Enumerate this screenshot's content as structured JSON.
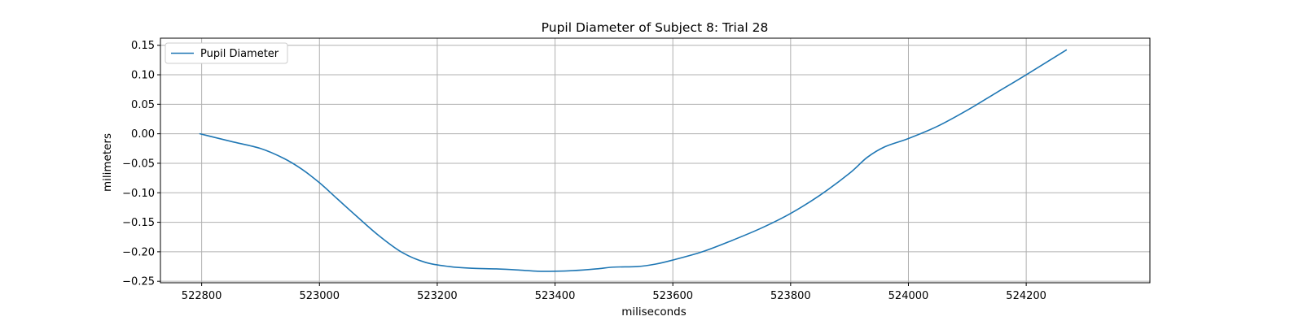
{
  "chart_data": {
    "type": "line",
    "title": "Pupil Diameter of Subject 8: Trial 28",
    "xlabel": "miliseconds",
    "ylabel": "milimeters",
    "xlim": [
      522730,
      524410
    ],
    "ylim": [
      -0.2525,
      0.162
    ],
    "xticks": [
      522800,
      523000,
      523200,
      523400,
      523600,
      523800,
      524000,
      524200
    ],
    "xtick_labels": [
      "522800",
      "523000",
      "523200",
      "523400",
      "523600",
      "523800",
      "524000",
      "524200"
    ],
    "yticks": [
      0.15,
      0.1,
      0.05,
      0.0,
      -0.05,
      -0.1,
      -0.15,
      -0.2,
      -0.25
    ],
    "ytick_labels": [
      "0.15",
      "0.10",
      "0.05",
      "0.00",
      "−0.05",
      "−0.10",
      "−0.15",
      "−0.20",
      "−0.25"
    ],
    "grid": true,
    "legend_position": "top-left",
    "series": [
      {
        "name": "Pupil Diameter",
        "color": "#1f77b4",
        "x": [
          522797,
          522850,
          522900,
          522940,
          522970,
          523000,
          523030,
          523060,
          523100,
          523140,
          523180,
          523220,
          523260,
          523300,
          523340,
          523370,
          523400,
          523430,
          523470,
          523500,
          523540,
          523570,
          523600,
          523650,
          523700,
          523750,
          523800,
          523850,
          523900,
          523930,
          523960,
          524000,
          524050,
          524100,
          524150,
          524200,
          524268
        ],
        "y": [
          0.0,
          -0.013,
          -0.025,
          -0.042,
          -0.06,
          -0.083,
          -0.11,
          -0.137,
          -0.172,
          -0.201,
          -0.218,
          -0.225,
          -0.228,
          -0.229,
          -0.231,
          -0.233,
          -0.233,
          -0.232,
          -0.229,
          -0.226,
          -0.225,
          -0.221,
          -0.214,
          -0.2,
          -0.181,
          -0.16,
          -0.135,
          -0.104,
          -0.067,
          -0.04,
          -0.022,
          -0.008,
          0.013,
          0.04,
          0.07,
          0.1,
          0.142
        ]
      }
    ]
  }
}
